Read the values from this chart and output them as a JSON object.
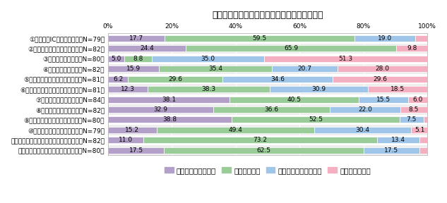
{
  "title": "物流施設の立地を検討する際の各要因の重視度",
  "categories": [
    "①高速道路ICへのアクセス（N=79）",
    "②主要幹線道路へのアクセス（N=82）",
    "③空港へのアクセス（N=80）",
    "④港湾へのアクセス（N=82）",
    "⑤鉄道コンテナ駅へのアクセス（N=81）",
    "⑥路線便ターミナルへのアクセス（N=81）",
    "⑦生産拠点へのアクセス（N=84）",
    "⑧消費拠点へのアクセス（N=82）",
    "⑨賃料・地代が安価であること（N=80）",
    "⑩雇用確保が容易であること（N=79）",
    "⑪周辺環境が物流用地に適していること（N=82）",
    "⑫広い用地・施設が確保できること（N=80）"
  ],
  "data": [
    [
      17.7,
      59.5,
      19.0,
      3.8
    ],
    [
      24.4,
      65.9,
      0.0,
      9.8
    ],
    [
      5.0,
      8.8,
      35.0,
      51.3
    ],
    [
      15.9,
      35.4,
      20.7,
      28.0
    ],
    [
      6.2,
      29.6,
      34.6,
      29.6
    ],
    [
      12.3,
      38.3,
      30.9,
      18.5
    ],
    [
      38.1,
      40.5,
      15.5,
      6.0
    ],
    [
      32.9,
      36.6,
      22.0,
      8.5
    ],
    [
      38.8,
      52.5,
      7.5,
      1.3
    ],
    [
      15.2,
      49.4,
      30.4,
      5.1
    ],
    [
      11.0,
      73.2,
      13.4,
      2.4
    ],
    [
      17.5,
      62.5,
      17.5,
      2.5
    ]
  ],
  "colors": [
    "#b3a0c8",
    "#99cc99",
    "#9fc5e8",
    "#f4afc0"
  ],
  "legend_labels": [
    "とても重視している",
    "重視している",
    "あまり重視していない",
    "重視していない"
  ],
  "bar_height": 0.62,
  "background_color": "#ffffff",
  "plot_bg_color": "#ffffff",
  "title_fontsize": 9,
  "label_fontsize": 6.5,
  "tick_fontsize": 6.5,
  "legend_fontsize": 7.5,
  "row_colors": [
    "#ffffff",
    "#eeeeee"
  ]
}
